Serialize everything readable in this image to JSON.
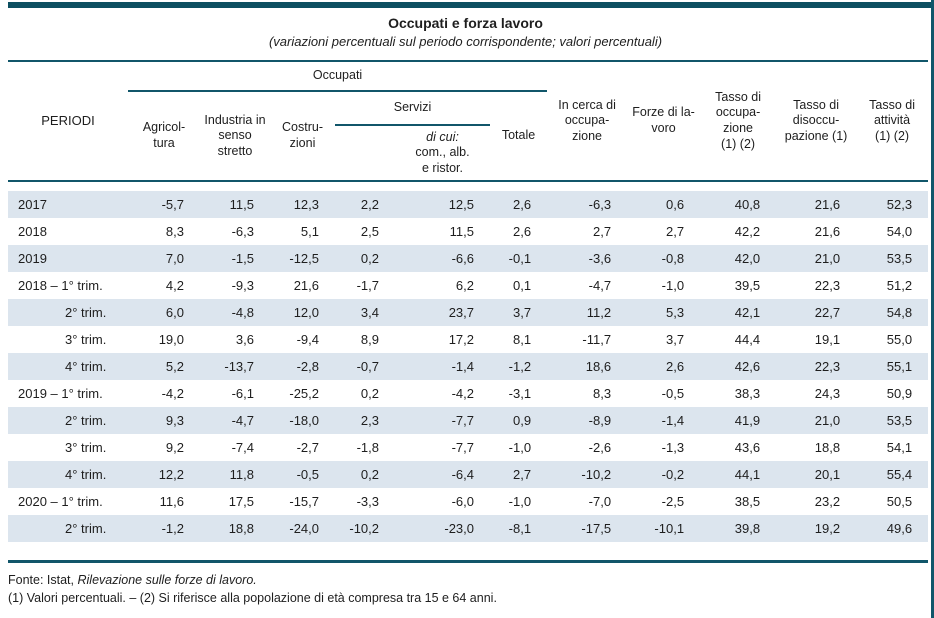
{
  "page": {
    "title": "Occupati e forza lavoro",
    "subtitle": "(variazioni percentuali sul periodo corrispondente; valori percentuali)"
  },
  "colors": {
    "accent": "#11566a",
    "topbar": "#0d4f61",
    "stripe": "#dce5ee"
  },
  "table": {
    "periodi": "PERIODI",
    "groups": {
      "occupati": "Occupati",
      "servizi": "Servizi"
    },
    "headers": {
      "agricoltura": "Agricol-\ntura",
      "industria": "Industria in\nsenso\nstretto",
      "costruzioni": "Costru-\nzioni",
      "di_cui_italic": "di cui:",
      "di_cui_rest": "\ncom., alb.\ne ristor.",
      "totale": "Totale",
      "in_cerca": "In cerca di\noccupa-\nzione",
      "forze": "Forze di la-\nvoro",
      "tasso_occupazione": "Tasso di\noccupa-\nzione\n(1) (2)",
      "tasso_disoccupazione": "Tasso di\ndisoccu-\npazione (1)",
      "tasso_attivita": "Tasso di\nattività\n(1) (2)"
    },
    "rows": [
      {
        "label": "2017",
        "indent": false,
        "values": [
          "-5,7",
          "11,5",
          "12,3",
          "2,2",
          "12,5",
          "2,6",
          "-6,3",
          "0,6",
          "40,8",
          "21,6",
          "52,3"
        ]
      },
      {
        "label": "2018",
        "indent": false,
        "values": [
          "8,3",
          "-6,3",
          "5,1",
          "2,5",
          "11,5",
          "2,6",
          "2,7",
          "2,7",
          "42,2",
          "21,6",
          "54,0"
        ]
      },
      {
        "label": "2019",
        "indent": false,
        "values": [
          "7,0",
          "-1,5",
          "-12,5",
          "0,2",
          "-6,6",
          "-0,1",
          "-3,6",
          "-0,8",
          "42,0",
          "21,0",
          "53,5"
        ]
      },
      {
        "label": "2018 – 1° trim.",
        "indent": false,
        "values": [
          "4,2",
          "-9,3",
          "21,6",
          "-1,7",
          "6,2",
          "0,1",
          "-4,7",
          "-1,0",
          "39,5",
          "22,3",
          "51,2"
        ]
      },
      {
        "label": "2° trim.",
        "indent": true,
        "values": [
          "6,0",
          "-4,8",
          "12,0",
          "3,4",
          "23,7",
          "3,7",
          "11,2",
          "5,3",
          "42,1",
          "22,7",
          "54,8"
        ]
      },
      {
        "label": "3° trim.",
        "indent": true,
        "values": [
          "19,0",
          "3,6",
          "-9,4",
          "8,9",
          "17,2",
          "8,1",
          "-11,7",
          "3,7",
          "44,4",
          "19,1",
          "55,0"
        ]
      },
      {
        "label": "4° trim.",
        "indent": true,
        "values": [
          "5,2",
          "-13,7",
          "-2,8",
          "-0,7",
          "-1,4",
          "-1,2",
          "18,6",
          "2,6",
          "42,6",
          "22,3",
          "55,1"
        ]
      },
      {
        "label": "2019 – 1° trim.",
        "indent": false,
        "values": [
          "-4,2",
          "-6,1",
          "-25,2",
          "0,2",
          "-4,2",
          "-3,1",
          "8,3",
          "-0,5",
          "38,3",
          "24,3",
          "50,9"
        ]
      },
      {
        "label": "2° trim.",
        "indent": true,
        "values": [
          "9,3",
          "-4,7",
          "-18,0",
          "2,3",
          "-7,7",
          "0,9",
          "-8,9",
          "-1,4",
          "41,9",
          "21,0",
          "53,5"
        ]
      },
      {
        "label": "3° trim.",
        "indent": true,
        "values": [
          "9,2",
          "-7,4",
          "-2,7",
          "-1,8",
          "-7,7",
          "-1,0",
          "-2,6",
          "-1,3",
          "43,6",
          "18,8",
          "54,1"
        ]
      },
      {
        "label": "4° trim.",
        "indent": true,
        "values": [
          "12,2",
          "11,8",
          "-0,5",
          "0,2",
          "-6,4",
          "2,7",
          "-10,2",
          "-0,2",
          "44,1",
          "20,1",
          "55,4"
        ]
      },
      {
        "label": "2020 – 1° trim.",
        "indent": false,
        "values": [
          "11,6",
          "17,5",
          "-15,7",
          "-3,3",
          "-6,0",
          "-1,0",
          "-7,0",
          "-2,5",
          "38,5",
          "23,2",
          "50,5"
        ]
      },
      {
        "label": "2° trim.",
        "indent": true,
        "values": [
          "-1,2",
          "18,8",
          "-24,0",
          "-10,2",
          "-23,0",
          "-8,1",
          "-17,5",
          "-10,1",
          "39,8",
          "19,2",
          "49,6"
        ]
      }
    ]
  },
  "footer": {
    "fonte_prefix": "Fonte: Istat, ",
    "fonte_italic": "Rilevazione sulle forze di lavoro.",
    "note": "(1) Valori percentuali. – (2) Si riferisce alla popolazione di età compresa tra 15 e 64 anni."
  }
}
